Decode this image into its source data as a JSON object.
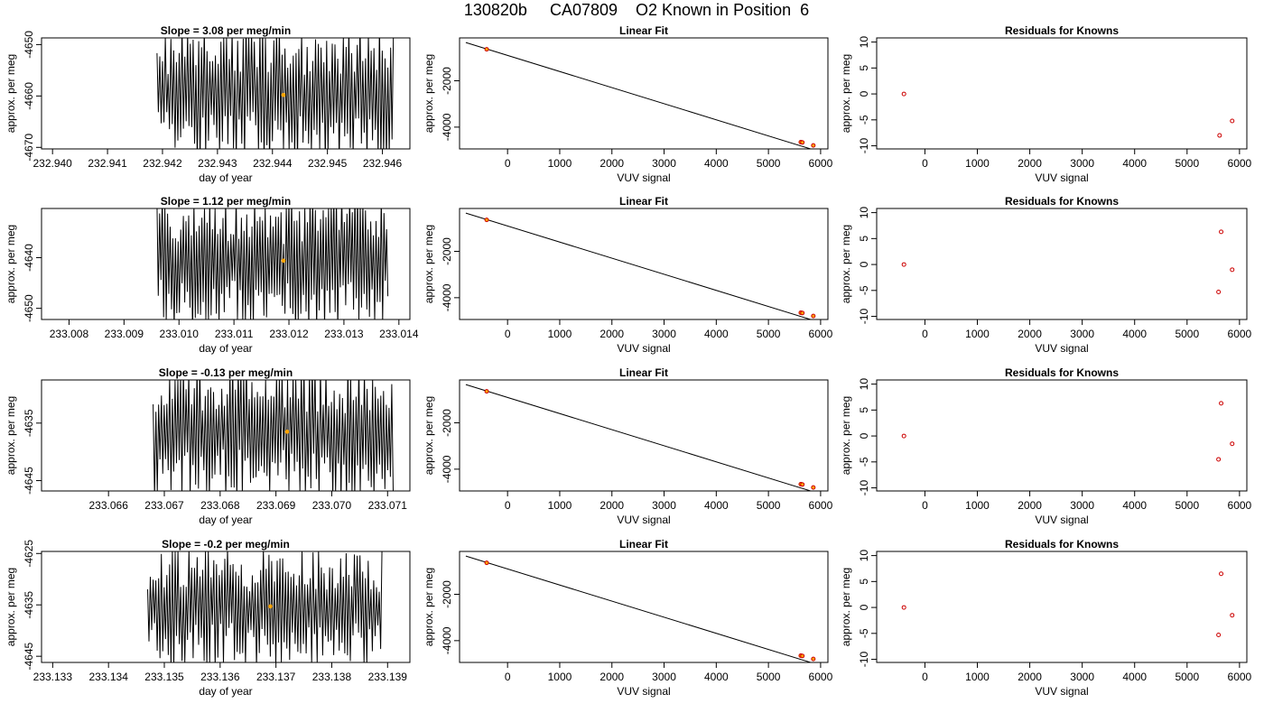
{
  "main_title": "130820b     CA07809    O2 Known in Position  6",
  "colors": {
    "trace": "#000000",
    "highlight": "#ffa500",
    "point": "#cc0000",
    "axis": "#000000"
  },
  "chart_data": [
    {
      "type": "line",
      "panel": "timeseries",
      "title": "Slope =  3.08  per meg/min",
      "xlabel": "day of year",
      "ylabel": "approx. per meg",
      "xlim": [
        232.9398,
        232.9465
      ],
      "ylim": [
        -4670.3,
        -4648.7
      ],
      "xticks": [
        232.94,
        232.941,
        232.942,
        232.943,
        232.944,
        232.945,
        232.946
      ],
      "xtick_labels": [
        "232.940",
        "232.941",
        "232.942",
        "232.943",
        "232.944",
        "232.945",
        "232.946"
      ],
      "yticks": [
        -4670,
        -4660,
        -4650
      ],
      "ytick_labels": [
        "-4670",
        "-4660",
        "-4650"
      ],
      "trace": {
        "x_start": 232.9419,
        "x_end": 232.9462,
        "base": -4659.5,
        "amp": 14,
        "n": 170
      },
      "highlight": {
        "x": 232.9442,
        "y": -4659.8
      }
    },
    {
      "type": "scatter",
      "panel": "linear_fit",
      "title": "Linear Fit",
      "xlabel": "VUV signal",
      "ylabel": "approx. per meg",
      "xlim": [
        -920,
        6140
      ],
      "ylim": [
        -4940,
        -150
      ],
      "xticks": [
        0,
        1000,
        2000,
        3000,
        4000,
        5000,
        6000
      ],
      "yticks": [
        -4000,
        -2000
      ],
      "fit_line": [
        [
          -800,
          -350
        ],
        [
          5880,
          -4990
        ]
      ],
      "points": [
        [
          -400,
          -640
        ],
        [
          5620,
          -4648
        ],
        [
          5650,
          -4660
        ],
        [
          5860,
          -4788
        ]
      ]
    },
    {
      "type": "scatter",
      "panel": "residuals",
      "title": "Residuals for Knowns",
      "xlabel": "VUV signal",
      "ylabel": "approx. per meg",
      "xlim": [
        -920,
        6140
      ],
      "ylim": [
        -10.6,
        10.8
      ],
      "xticks": [
        0,
        1000,
        2000,
        3000,
        4000,
        5000,
        6000
      ],
      "yticks": [
        -10,
        -5,
        0,
        5,
        10
      ],
      "points": [
        [
          -400,
          0
        ],
        [
          5620,
          -8
        ],
        [
          5860,
          -5.2
        ]
      ]
    },
    {
      "type": "line",
      "panel": "timeseries",
      "title": "Slope =  1.12  per meg/min",
      "xlabel": "day of year",
      "ylabel": "approx. per meg",
      "xlim": [
        233.0075,
        233.0142
      ],
      "ylim": [
        -4652.2,
        -4630.3
      ],
      "xticks": [
        233.008,
        233.009,
        233.01,
        233.011,
        233.012,
        233.013,
        233.014
      ],
      "xtick_labels": [
        "233.008",
        "233.009",
        "233.010",
        "233.011",
        "233.012",
        "233.013",
        "233.014"
      ],
      "yticks": [
        -4650,
        -4640
      ],
      "ytick_labels": [
        "-4650",
        "-4640"
      ],
      "trace": {
        "x_start": 233.0096,
        "x_end": 233.0138,
        "base": -4640.8,
        "amp": 14,
        "n": 175
      },
      "highlight": {
        "x": 233.0119,
        "y": -4640.6
      }
    },
    {
      "type": "scatter",
      "panel": "linear_fit",
      "title": "Linear Fit",
      "xlabel": "VUV signal",
      "ylabel": "approx. per meg",
      "xlim": [
        -920,
        6140
      ],
      "ylim": [
        -4940,
        -150
      ],
      "xticks": [
        0,
        1000,
        2000,
        3000,
        4000,
        5000,
        6000
      ],
      "yticks": [
        -4000,
        -2000
      ],
      "fit_line": [
        [
          -800,
          -350
        ],
        [
          5880,
          -4990
        ]
      ],
      "points": [
        [
          -400,
          -640
        ],
        [
          5620,
          -4648
        ],
        [
          5650,
          -4660
        ],
        [
          5860,
          -4788
        ]
      ]
    },
    {
      "type": "scatter",
      "panel": "residuals",
      "title": "Residuals for Knowns",
      "xlabel": "VUV signal",
      "ylabel": "approx. per meg",
      "xlim": [
        -920,
        6140
      ],
      "ylim": [
        -10.6,
        10.8
      ],
      "xticks": [
        0,
        1000,
        2000,
        3000,
        4000,
        5000,
        6000
      ],
      "yticks": [
        -10,
        -5,
        0,
        5,
        10
      ],
      "points": [
        [
          -400,
          0
        ],
        [
          5600,
          -5.3
        ],
        [
          5650,
          6.3
        ],
        [
          5860,
          -1
        ]
      ]
    },
    {
      "type": "line",
      "panel": "timeseries",
      "title": "Slope =  -0.13  per meg/min",
      "xlabel": "day of year",
      "ylabel": "approx. per meg",
      "xlim": [
        233.0648,
        233.0714
      ],
      "ylim": [
        -4646.8,
        -4627.5
      ],
      "xticks": [
        233.066,
        233.067,
        233.068,
        233.069,
        233.07,
        233.071
      ],
      "xtick_labels": [
        "233.066",
        "233.067",
        "233.068",
        "233.069",
        "233.070",
        "233.071"
      ],
      "yticks": [
        -4645,
        -4635
      ],
      "ytick_labels": [
        "-4645",
        "-4635"
      ],
      "trace": {
        "x_start": 233.0668,
        "x_end": 233.0711,
        "base": -4636.5,
        "amp": 12,
        "n": 175
      },
      "highlight": {
        "x": 233.0692,
        "y": -4636.5
      }
    },
    {
      "type": "scatter",
      "panel": "linear_fit",
      "title": "Linear Fit",
      "xlabel": "VUV signal",
      "ylabel": "approx. per meg",
      "xlim": [
        -920,
        6140
      ],
      "ylim": [
        -4940,
        -150
      ],
      "xticks": [
        0,
        1000,
        2000,
        3000,
        4000,
        5000,
        6000
      ],
      "yticks": [
        -4000,
        -2000
      ],
      "fit_line": [
        [
          -800,
          -350
        ],
        [
          5880,
          -4990
        ]
      ],
      "points": [
        [
          -400,
          -640
        ],
        [
          5620,
          -4648
        ],
        [
          5650,
          -4660
        ],
        [
          5860,
          -4788
        ]
      ]
    },
    {
      "type": "scatter",
      "panel": "residuals",
      "title": "Residuals for Knowns",
      "xlabel": "VUV signal",
      "ylabel": "approx. per meg",
      "xlim": [
        -920,
        6140
      ],
      "ylim": [
        -10.6,
        10.8
      ],
      "xticks": [
        0,
        1000,
        2000,
        3000,
        4000,
        5000,
        6000
      ],
      "yticks": [
        -10,
        -5,
        0,
        5,
        10
      ],
      "points": [
        [
          -400,
          0
        ],
        [
          5600,
          -4.5
        ],
        [
          5650,
          6.3
        ],
        [
          5860,
          -1.5
        ]
      ]
    },
    {
      "type": "line",
      "panel": "timeseries",
      "title": "Slope =  -0.2  per meg/min",
      "xlabel": "day of year",
      "ylabel": "approx. per meg",
      "xlim": [
        233.1328,
        233.1394
      ],
      "ylim": [
        -4646.2,
        -4624.6
      ],
      "xticks": [
        233.133,
        233.134,
        233.135,
        233.136,
        233.137,
        233.138,
        233.139
      ],
      "xtick_labels": [
        "233.133",
        "233.134",
        "233.135",
        "233.136",
        "233.137",
        "233.138",
        "233.139"
      ],
      "yticks": [
        -4645,
        -4635,
        -4625
      ],
      "ytick_labels": [
        "-4645",
        "-4635",
        "-4625"
      ],
      "trace": {
        "x_start": 233.1347,
        "x_end": 233.1389,
        "base": -4635.5,
        "amp": 12,
        "n": 170
      },
      "highlight": {
        "x": 233.1369,
        "y": -4635.3
      }
    },
    {
      "type": "scatter",
      "panel": "linear_fit",
      "title": "Linear Fit",
      "xlabel": "VUV signal",
      "ylabel": "approx. per meg",
      "xlim": [
        -920,
        6140
      ],
      "ylim": [
        -4940,
        -150
      ],
      "xticks": [
        0,
        1000,
        2000,
        3000,
        4000,
        5000,
        6000
      ],
      "yticks": [
        -4000,
        -2000
      ],
      "fit_line": [
        [
          -800,
          -350
        ],
        [
          5880,
          -4990
        ]
      ],
      "points": [
        [
          -400,
          -640
        ],
        [
          5620,
          -4648
        ],
        [
          5650,
          -4660
        ],
        [
          5860,
          -4788
        ]
      ]
    },
    {
      "type": "scatter",
      "panel": "residuals",
      "title": "Residuals for Knowns",
      "xlabel": "VUV signal",
      "ylabel": "approx. per meg",
      "xlim": [
        -920,
        6140
      ],
      "ylim": [
        -10.6,
        10.8
      ],
      "xticks": [
        0,
        1000,
        2000,
        3000,
        4000,
        5000,
        6000
      ],
      "yticks": [
        -10,
        -5,
        0,
        5,
        10
      ],
      "points": [
        [
          -400,
          0
        ],
        [
          5600,
          -5.3
        ],
        [
          5650,
          6.5
        ],
        [
          5860,
          -1.5
        ]
      ]
    }
  ]
}
